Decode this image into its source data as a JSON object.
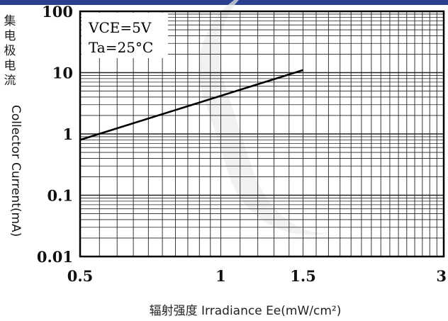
{
  "chart_data": {
    "type": "line",
    "xscale": "log",
    "yscale": "log",
    "xlim": [
      0.5,
      3
    ],
    "ylim": [
      0.01,
      100
    ],
    "x_ticks": [
      "0.5",
      "1",
      "1.5",
      "3"
    ],
    "y_ticks": [
      "100",
      "10",
      "1",
      "0.1",
      "0.01"
    ],
    "ylabel_cn": "集电极电流",
    "ylabel": "Collector Current(mA)",
    "xlabel": "辐射强度  Irradiance Ee(mW/cm²)",
    "annotation_lines": [
      "VCE=5V",
      "Ta=25°C"
    ],
    "grid": true,
    "series": [
      {
        "x": [
          0.5,
          1.5
        ],
        "y": [
          0.8,
          11
        ]
      }
    ]
  }
}
